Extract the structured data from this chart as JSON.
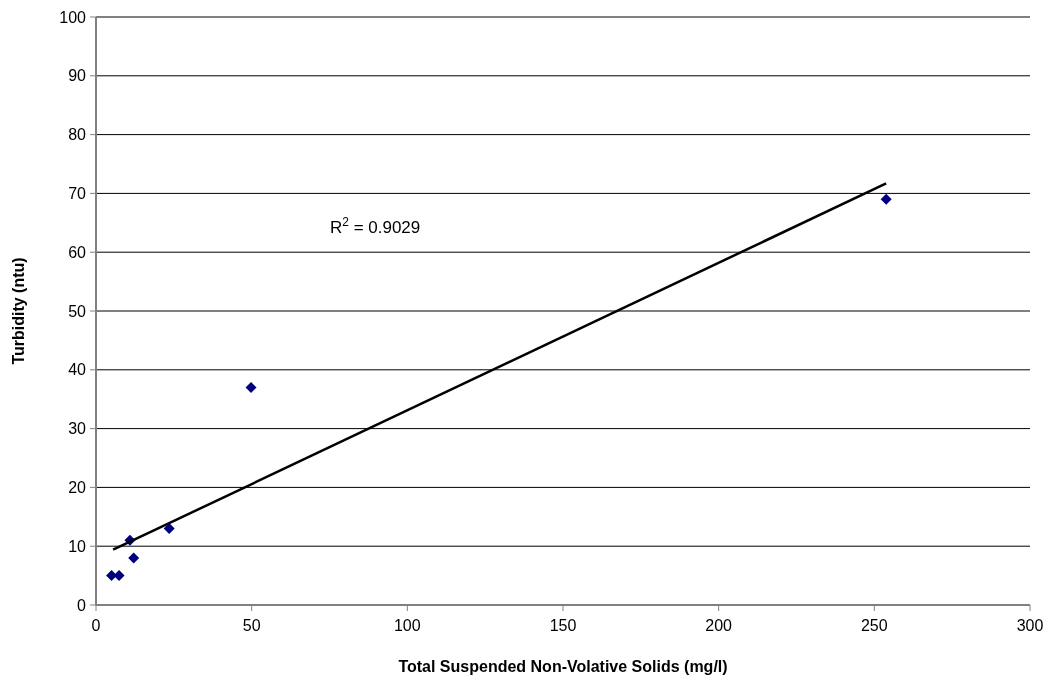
{
  "chart_data": {
    "type": "scatter",
    "xlabel": "Total Suspended Non-Volative Solids (mg/l)",
    "ylabel": "Turbidity (ntu)",
    "xlim": [
      0,
      300
    ],
    "xticks": [
      0,
      50,
      100,
      150,
      200,
      250,
      300
    ],
    "ylim": [
      0,
      100
    ],
    "yticks": [
      0,
      10,
      20,
      30,
      40,
      50,
      60,
      70,
      80,
      90,
      100
    ],
    "grid": "y",
    "series": [
      {
        "marker": "diamond",
        "color": "#000080",
        "x": [
          5,
          7.4,
          10.9,
          12.1,
          23.5,
          49.8,
          253.8
        ],
        "values": [
          5,
          5,
          11,
          8,
          13,
          37,
          69
        ]
      },
      {
        "type": "line",
        "color": "#000000",
        "x": [
          5.5,
          253.8
        ],
        "values": [
          9.4,
          71.7
        ]
      }
    ],
    "annotations": [
      "R$^{2}$ = 0.9029"
    ]
  }
}
